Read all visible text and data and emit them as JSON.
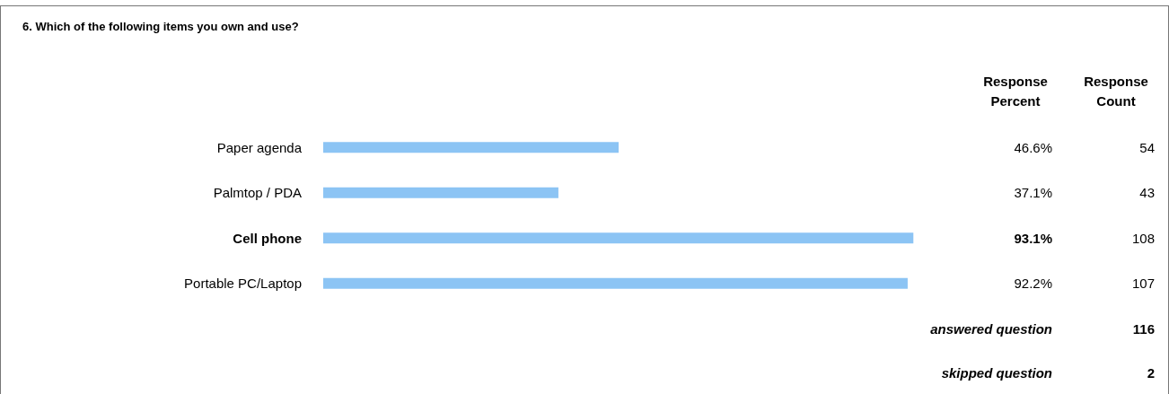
{
  "chart_data": {
    "type": "bar",
    "orientation": "horizontal",
    "title": "6. Which of the following items you own and use?",
    "categories": [
      "Paper agenda",
      "Palmtop / PDA",
      "Cell phone",
      "Portable PC/Laptop"
    ],
    "values": [
      46.6,
      37.1,
      93.1,
      92.2
    ],
    "value_labels": [
      "46.6%",
      "37.1%",
      "93.1%",
      "92.2%"
    ],
    "color": "#8cc4f4",
    "annotations": [
      "Response Percent",
      "Response Count",
      "54",
      "43",
      "108",
      "107",
      "answered question",
      "116",
      "skipped question",
      "2"
    ]
  }
}
